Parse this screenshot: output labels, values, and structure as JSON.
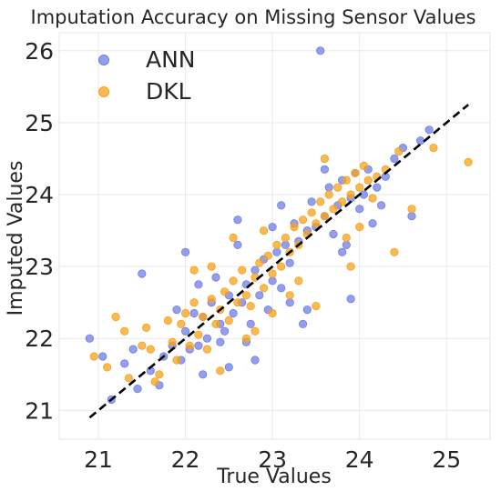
{
  "chart_data": {
    "type": "scatter",
    "title": "Imputation Accuracy on Missing Sensor Values",
    "xlabel": "True Values",
    "ylabel": "Imputed Values",
    "xlim": [
      20.55,
      25.5
    ],
    "ylim": [
      20.6,
      26.25
    ],
    "xticks": [
      21,
      22,
      23,
      24,
      25
    ],
    "yticks": [
      21,
      22,
      23,
      24,
      25,
      26
    ],
    "grid": true,
    "legend": "top-left",
    "reference_line": {
      "style": "dashed",
      "color": "#000000",
      "from": [
        20.9,
        20.9
      ],
      "to": [
        25.25,
        25.25
      ]
    },
    "series": [
      {
        "name": "ANN",
        "color": "#6f7fe6",
        "points": [
          [
            20.9,
            22.0
          ],
          [
            21.05,
            21.75
          ],
          [
            21.15,
            21.15
          ],
          [
            21.3,
            21.65
          ],
          [
            21.4,
            21.85
          ],
          [
            21.45,
            21.3
          ],
          [
            21.6,
            21.55
          ],
          [
            21.7,
            21.35
          ],
          [
            21.75,
            21.75
          ],
          [
            21.85,
            21.9
          ],
          [
            21.9,
            22.4
          ],
          [
            21.95,
            21.7
          ],
          [
            22.0,
            22.1
          ],
          [
            22.05,
            21.85
          ],
          [
            22.1,
            22.35
          ],
          [
            22.15,
            21.9
          ],
          [
            22.2,
            22.3
          ],
          [
            22.25,
            22.0
          ],
          [
            22.3,
            22.5
          ],
          [
            22.35,
            22.85
          ],
          [
            22.4,
            22.2
          ],
          [
            22.45,
            22.1
          ],
          [
            22.5,
            22.6
          ],
          [
            22.55,
            22.35
          ],
          [
            22.6,
            23.3
          ],
          [
            22.65,
            22.5
          ],
          [
            22.7,
            22.75
          ],
          [
            22.75,
            22.2
          ],
          [
            22.8,
            22.95
          ],
          [
            22.85,
            22.6
          ],
          [
            22.9,
            23.1
          ],
          [
            22.95,
            22.4
          ],
          [
            23.0,
            22.8
          ],
          [
            23.05,
            23.2
          ],
          [
            23.1,
            22.7
          ],
          [
            23.15,
            23.3
          ],
          [
            23.2,
            23.05
          ],
          [
            23.25,
            23.6
          ],
          [
            23.3,
            23.35
          ],
          [
            23.35,
            22.2
          ],
          [
            23.4,
            23.5
          ],
          [
            23.45,
            23.9
          ],
          [
            23.5,
            23.55
          ],
          [
            23.55,
            26.0
          ],
          [
            23.6,
            23.7
          ],
          [
            23.65,
            24.1
          ],
          [
            23.7,
            23.45
          ],
          [
            23.75,
            23.85
          ],
          [
            23.8,
            24.2
          ],
          [
            23.85,
            23.3
          ],
          [
            23.9,
            23.95
          ],
          [
            23.95,
            24.3
          ],
          [
            24.0,
            23.8
          ],
          [
            24.05,
            24.0
          ],
          [
            24.1,
            24.35
          ],
          [
            24.15,
            23.6
          ],
          [
            24.2,
            24.1
          ],
          [
            24.25,
            23.85
          ],
          [
            24.3,
            24.25
          ],
          [
            24.5,
            24.65
          ],
          [
            24.6,
            23.7
          ],
          [
            24.7,
            24.75
          ],
          [
            24.8,
            24.9
          ],
          [
            22.0,
            23.2
          ],
          [
            22.4,
            21.95
          ],
          [
            22.8,
            21.7
          ],
          [
            23.2,
            22.5
          ],
          [
            23.6,
            24.35
          ],
          [
            23.9,
            22.55
          ],
          [
            22.2,
            21.5
          ],
          [
            21.5,
            22.9
          ],
          [
            22.6,
            23.65
          ],
          [
            23.1,
            23.85
          ],
          [
            23.4,
            22.4
          ],
          [
            22.7,
            21.95
          ],
          [
            23.8,
            23.2
          ],
          [
            24.4,
            24.5
          ],
          [
            22.15,
            22.75
          ],
          [
            22.5,
            21.6
          ],
          [
            23.0,
            23.55
          ]
        ]
      },
      {
        "name": "DKL",
        "color": "#f7a21b",
        "points": [
          [
            20.95,
            21.75
          ],
          [
            21.1,
            21.6
          ],
          [
            21.3,
            22.1
          ],
          [
            21.35,
            21.45
          ],
          [
            21.5,
            21.9
          ],
          [
            21.55,
            22.15
          ],
          [
            21.6,
            21.85
          ],
          [
            21.7,
            21.5
          ],
          [
            21.8,
            22.25
          ],
          [
            21.85,
            21.95
          ],
          [
            21.9,
            21.7
          ],
          [
            21.95,
            22.2
          ],
          [
            22.0,
            22.35
          ],
          [
            22.05,
            21.9
          ],
          [
            22.1,
            22.5
          ],
          [
            22.15,
            22.05
          ],
          [
            22.2,
            22.3
          ],
          [
            22.25,
            21.85
          ],
          [
            22.3,
            22.55
          ],
          [
            22.35,
            22.2
          ],
          [
            22.4,
            22.4
          ],
          [
            22.45,
            22.65
          ],
          [
            22.5,
            22.25
          ],
          [
            22.55,
            22.8
          ],
          [
            22.6,
            22.5
          ],
          [
            22.65,
            22.95
          ],
          [
            22.7,
            22.6
          ],
          [
            22.75,
            22.45
          ],
          [
            22.8,
            22.85
          ],
          [
            22.85,
            23.05
          ],
          [
            22.9,
            22.7
          ],
          [
            22.95,
            23.15
          ],
          [
            23.0,
            22.9
          ],
          [
            23.05,
            23.3
          ],
          [
            23.1,
            23.0
          ],
          [
            23.15,
            23.4
          ],
          [
            23.2,
            23.2
          ],
          [
            23.25,
            23.55
          ],
          [
            23.3,
            23.3
          ],
          [
            23.35,
            23.65
          ],
          [
            23.4,
            23.45
          ],
          [
            23.45,
            23.75
          ],
          [
            23.5,
            23.6
          ],
          [
            23.55,
            23.9
          ],
          [
            23.6,
            23.7
          ],
          [
            23.65,
            24.0
          ],
          [
            23.7,
            23.8
          ],
          [
            23.75,
            24.1
          ],
          [
            23.8,
            23.9
          ],
          [
            23.85,
            24.2
          ],
          [
            23.9,
            24.0
          ],
          [
            23.95,
            24.3
          ],
          [
            24.0,
            24.1
          ],
          [
            24.05,
            24.4
          ],
          [
            24.1,
            24.2
          ],
          [
            24.15,
            23.95
          ],
          [
            24.2,
            24.25
          ],
          [
            24.3,
            24.35
          ],
          [
            24.45,
            24.6
          ],
          [
            24.6,
            23.8
          ],
          [
            24.85,
            24.65
          ],
          [
            25.25,
            24.45
          ],
          [
            22.4,
            21.55
          ],
          [
            22.8,
            22.1
          ],
          [
            23.2,
            22.6
          ],
          [
            23.5,
            22.45
          ],
          [
            23.9,
            23.0
          ],
          [
            22.3,
            23.0
          ],
          [
            22.9,
            23.5
          ],
          [
            23.6,
            24.5
          ],
          [
            24.4,
            23.2
          ],
          [
            21.2,
            22.3
          ],
          [
            21.65,
            21.4
          ],
          [
            22.7,
            22.0
          ],
          [
            23.3,
            22.8
          ],
          [
            23.85,
            23.4
          ],
          [
            22.1,
            22.95
          ],
          [
            22.55,
            23.4
          ],
          [
            23.0,
            22.35
          ],
          [
            24.0,
            23.55
          ]
        ]
      }
    ]
  }
}
